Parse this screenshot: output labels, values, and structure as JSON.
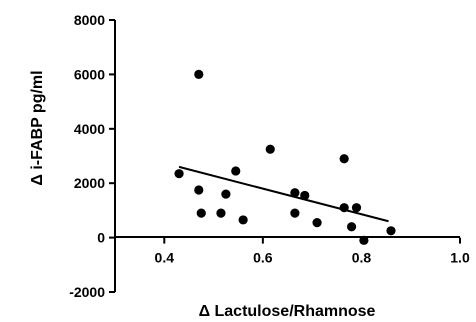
{
  "chart_data": {
    "type": "scatter",
    "title": "",
    "xlabel": "Δ Lactulose/Rhamnose",
    "ylabel": "Δ i-FABP pg/ml",
    "xlim": [
      0.3,
      1.0
    ],
    "ylim": [
      -2000,
      8000
    ],
    "xticks": [
      "0.4",
      "0.6",
      "0.8",
      "1.0"
    ],
    "yticks": [
      "-2000",
      "0",
      "2000",
      "4000",
      "6000",
      "8000"
    ],
    "grid": false,
    "legend": "none",
    "point_color": "#000000",
    "points": [
      {
        "x": 0.43,
        "y": 2350
      },
      {
        "x": 0.47,
        "y": 6000
      },
      {
        "x": 0.47,
        "y": 1750
      },
      {
        "x": 0.475,
        "y": 900
      },
      {
        "x": 0.515,
        "y": 900
      },
      {
        "x": 0.525,
        "y": 1600
      },
      {
        "x": 0.545,
        "y": 2450
      },
      {
        "x": 0.56,
        "y": 650
      },
      {
        "x": 0.615,
        "y": 3250
      },
      {
        "x": 0.665,
        "y": 1650
      },
      {
        "x": 0.665,
        "y": 900
      },
      {
        "x": 0.685,
        "y": 1550
      },
      {
        "x": 0.71,
        "y": 550
      },
      {
        "x": 0.765,
        "y": 2900
      },
      {
        "x": 0.765,
        "y": 1100
      },
      {
        "x": 0.78,
        "y": 400
      },
      {
        "x": 0.79,
        "y": 1100
      },
      {
        "x": 0.805,
        "y": -100
      },
      {
        "x": 0.86,
        "y": 250
      }
    ],
    "regression_line": {
      "x": [
        0.43,
        0.855
      ],
      "y": [
        2600,
        600
      ]
    }
  }
}
